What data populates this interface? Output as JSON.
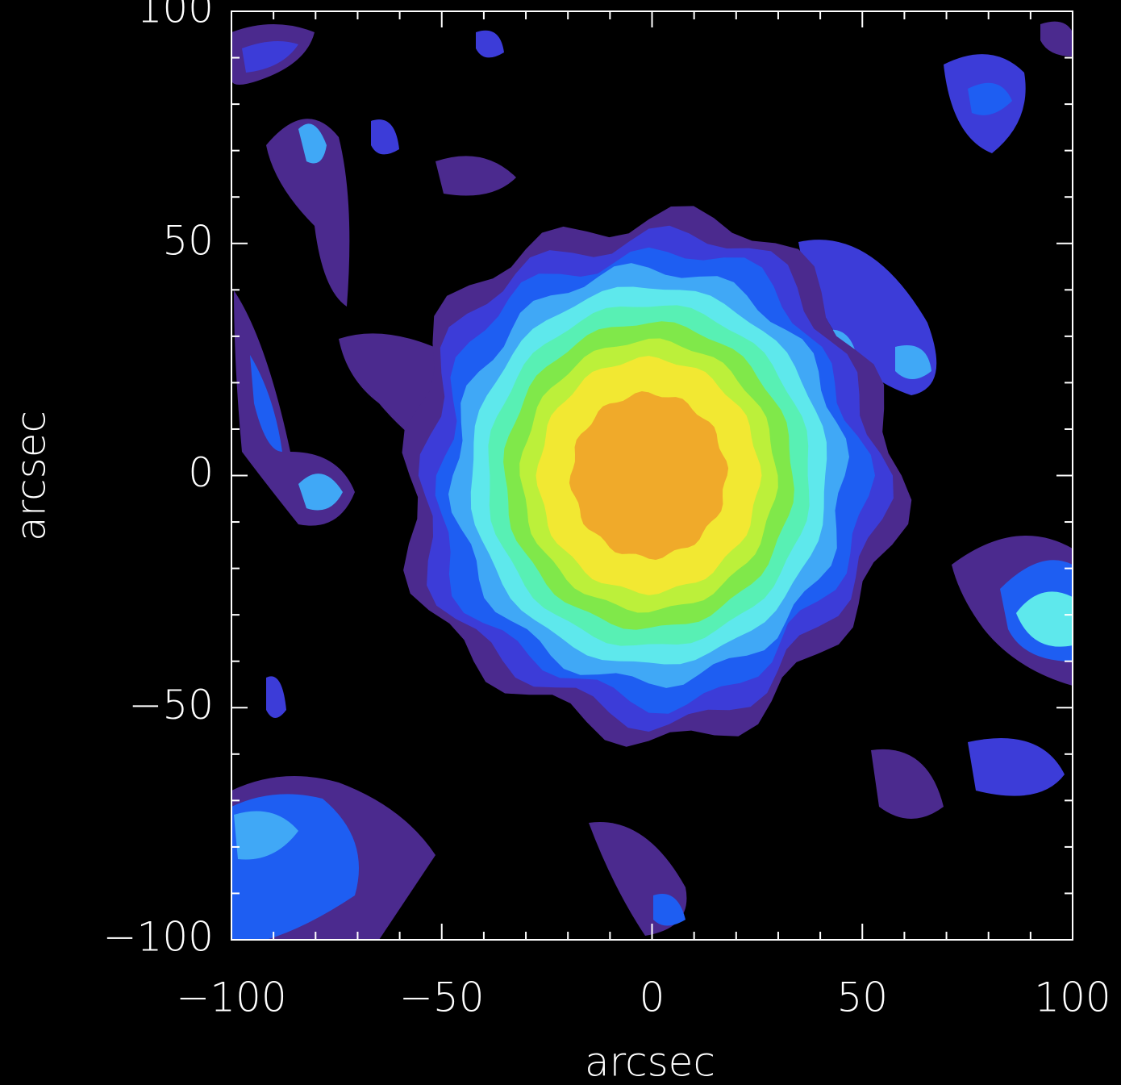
{
  "chart_data": {
    "type": "contour",
    "xlabel": "arcsec",
    "ylabel": "arcsec",
    "xlim": [
      -100,
      100
    ],
    "ylim": [
      -100,
      100
    ],
    "xticks": [
      {
        "value": -100,
        "label": "−100"
      },
      {
        "value": -50,
        "label": "−50"
      },
      0,
      50,
      100
    ],
    "yticks": [
      {
        "value": -100,
        "label": "−100"
      },
      {
        "value": -50,
        "label": "−50"
      },
      0,
      50,
      100
    ],
    "xminorticks": [
      -90,
      -80,
      -70,
      -60,
      -40,
      -30,
      -20,
      -10,
      10,
      20,
      30,
      40,
      60,
      70,
      80,
      90
    ],
    "yminorticks": [
      -90,
      -80,
      -70,
      -60,
      -40,
      -30,
      -20,
      -10,
      10,
      20,
      30,
      40,
      60,
      70,
      80,
      90
    ],
    "colormap": [
      "#4b2a8e",
      "#3c3cd8",
      "#1e5ef2",
      "#40a8f6",
      "#5ee8ec",
      "#58f0b4",
      "#80e84a",
      "#bcf03a",
      "#f2e832",
      "#f0aa2a"
    ]
  }
}
